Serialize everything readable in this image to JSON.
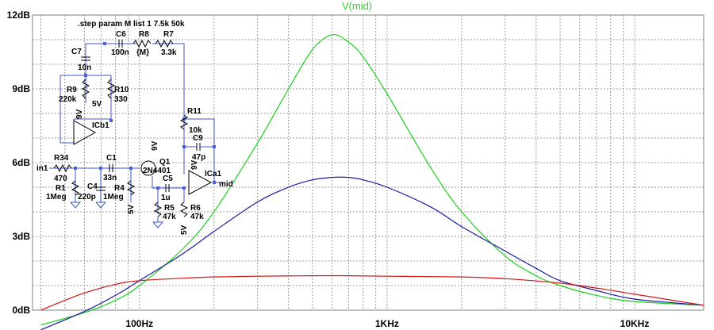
{
  "chart_data": {
    "type": "line",
    "title": "V(mid)",
    "xscale": "log",
    "xlim": [
      37,
      19000
    ],
    "ylim": [
      0,
      12
    ],
    "x_tick_labels": [
      "100Hz",
      "1KHz",
      "10KHz"
    ],
    "x_ticks": [
      100,
      1000,
      10000
    ],
    "y_ticks": [
      0,
      3,
      6,
      9,
      12
    ],
    "y_tick_labels": [
      "0dB",
      "3dB",
      "6dB",
      "9dB",
      "12dB"
    ],
    "grid": true,
    "series": [
      {
        "color": "#1bd01b",
        "x": [
          40,
          60,
          80,
          100,
          150,
          200,
          300,
          400,
          500,
          600,
          700,
          800,
          1000,
          1500,
          2000,
          3000,
          4000,
          5000,
          7000,
          10000,
          19000
        ],
        "y": [
          -0.6,
          -0.1,
          0.4,
          1.0,
          2.5,
          4.0,
          6.8,
          9.0,
          10.6,
          11.2,
          10.9,
          10.3,
          8.8,
          5.8,
          4.0,
          2.2,
          1.4,
          1.0,
          0.6,
          0.35,
          0.2
        ]
      },
      {
        "color": "#1a1aa0",
        "x": [
          40,
          60,
          80,
          100,
          150,
          200,
          300,
          400,
          500,
          600,
          700,
          800,
          1000,
          1500,
          2000,
          3000,
          4000,
          5000,
          7000,
          10000,
          19000
        ],
        "y": [
          -0.8,
          -0.05,
          0.6,
          1.2,
          2.3,
          3.2,
          4.4,
          5.0,
          5.3,
          5.4,
          5.4,
          5.3,
          5.0,
          4.2,
          3.4,
          2.4,
          1.7,
          1.2,
          0.8,
          0.45,
          0.2
        ]
      },
      {
        "color": "#d01515",
        "x": [
          40,
          50,
          60,
          80,
          100,
          150,
          200,
          300,
          500,
          700,
          1000,
          2000,
          3000,
          5000,
          7000,
          10000,
          19000
        ],
        "y": [
          0.0,
          0.4,
          0.7,
          1.05,
          1.2,
          1.3,
          1.35,
          1.38,
          1.4,
          1.4,
          1.38,
          1.35,
          1.28,
          1.1,
          0.9,
          0.65,
          0.2
        ]
      }
    ]
  },
  "schematic": {
    "directive": ".step param M list 1 7.5k 50k",
    "components": [
      {
        "id": "c6",
        "name": "C6",
        "value": "100n"
      },
      {
        "id": "r8",
        "name": "R8",
        "value": "{M}"
      },
      {
        "id": "r7",
        "name": "R7",
        "value": "3.3k"
      },
      {
        "id": "c7",
        "name": "C7",
        "value": "10n"
      },
      {
        "id": "r9",
        "name": "R9",
        "value": "220k"
      },
      {
        "id": "r10",
        "name": "R10",
        "value": "330"
      },
      {
        "id": "r11",
        "name": "R11",
        "value": "10k"
      },
      {
        "id": "c9",
        "name": "C9",
        "value": "47p"
      },
      {
        "id": "r34",
        "name": "R34",
        "value": "470"
      },
      {
        "id": "c1",
        "name": "C1",
        "value": "33n"
      },
      {
        "id": "q1",
        "name": "Q1",
        "value": "2N4401"
      },
      {
        "id": "r1",
        "name": "R1",
        "value": "1Meg"
      },
      {
        "id": "c4",
        "name": "C4",
        "value": "220p"
      },
      {
        "id": "r4",
        "name": "R4",
        "value": "1Meg"
      },
      {
        "id": "c5",
        "name": "C5",
        "value": "1u"
      },
      {
        "id": "r5",
        "name": "R5",
        "value": "47k"
      },
      {
        "id": "r6",
        "name": "R6",
        "value": "47k"
      }
    ],
    "opamps": [
      {
        "id": "icb1",
        "name": "ICb1"
      },
      {
        "id": "ica1",
        "name": "ICa1"
      }
    ],
    "net_labels": {
      "in1": "in1",
      "mid": "mid",
      "v5_r10": "5V",
      "v9_icb1": "9V",
      "v9_q1": "9V",
      "v9_ica1": "9V",
      "v5_r4": "5V",
      "v5_r6": "5V"
    }
  }
}
